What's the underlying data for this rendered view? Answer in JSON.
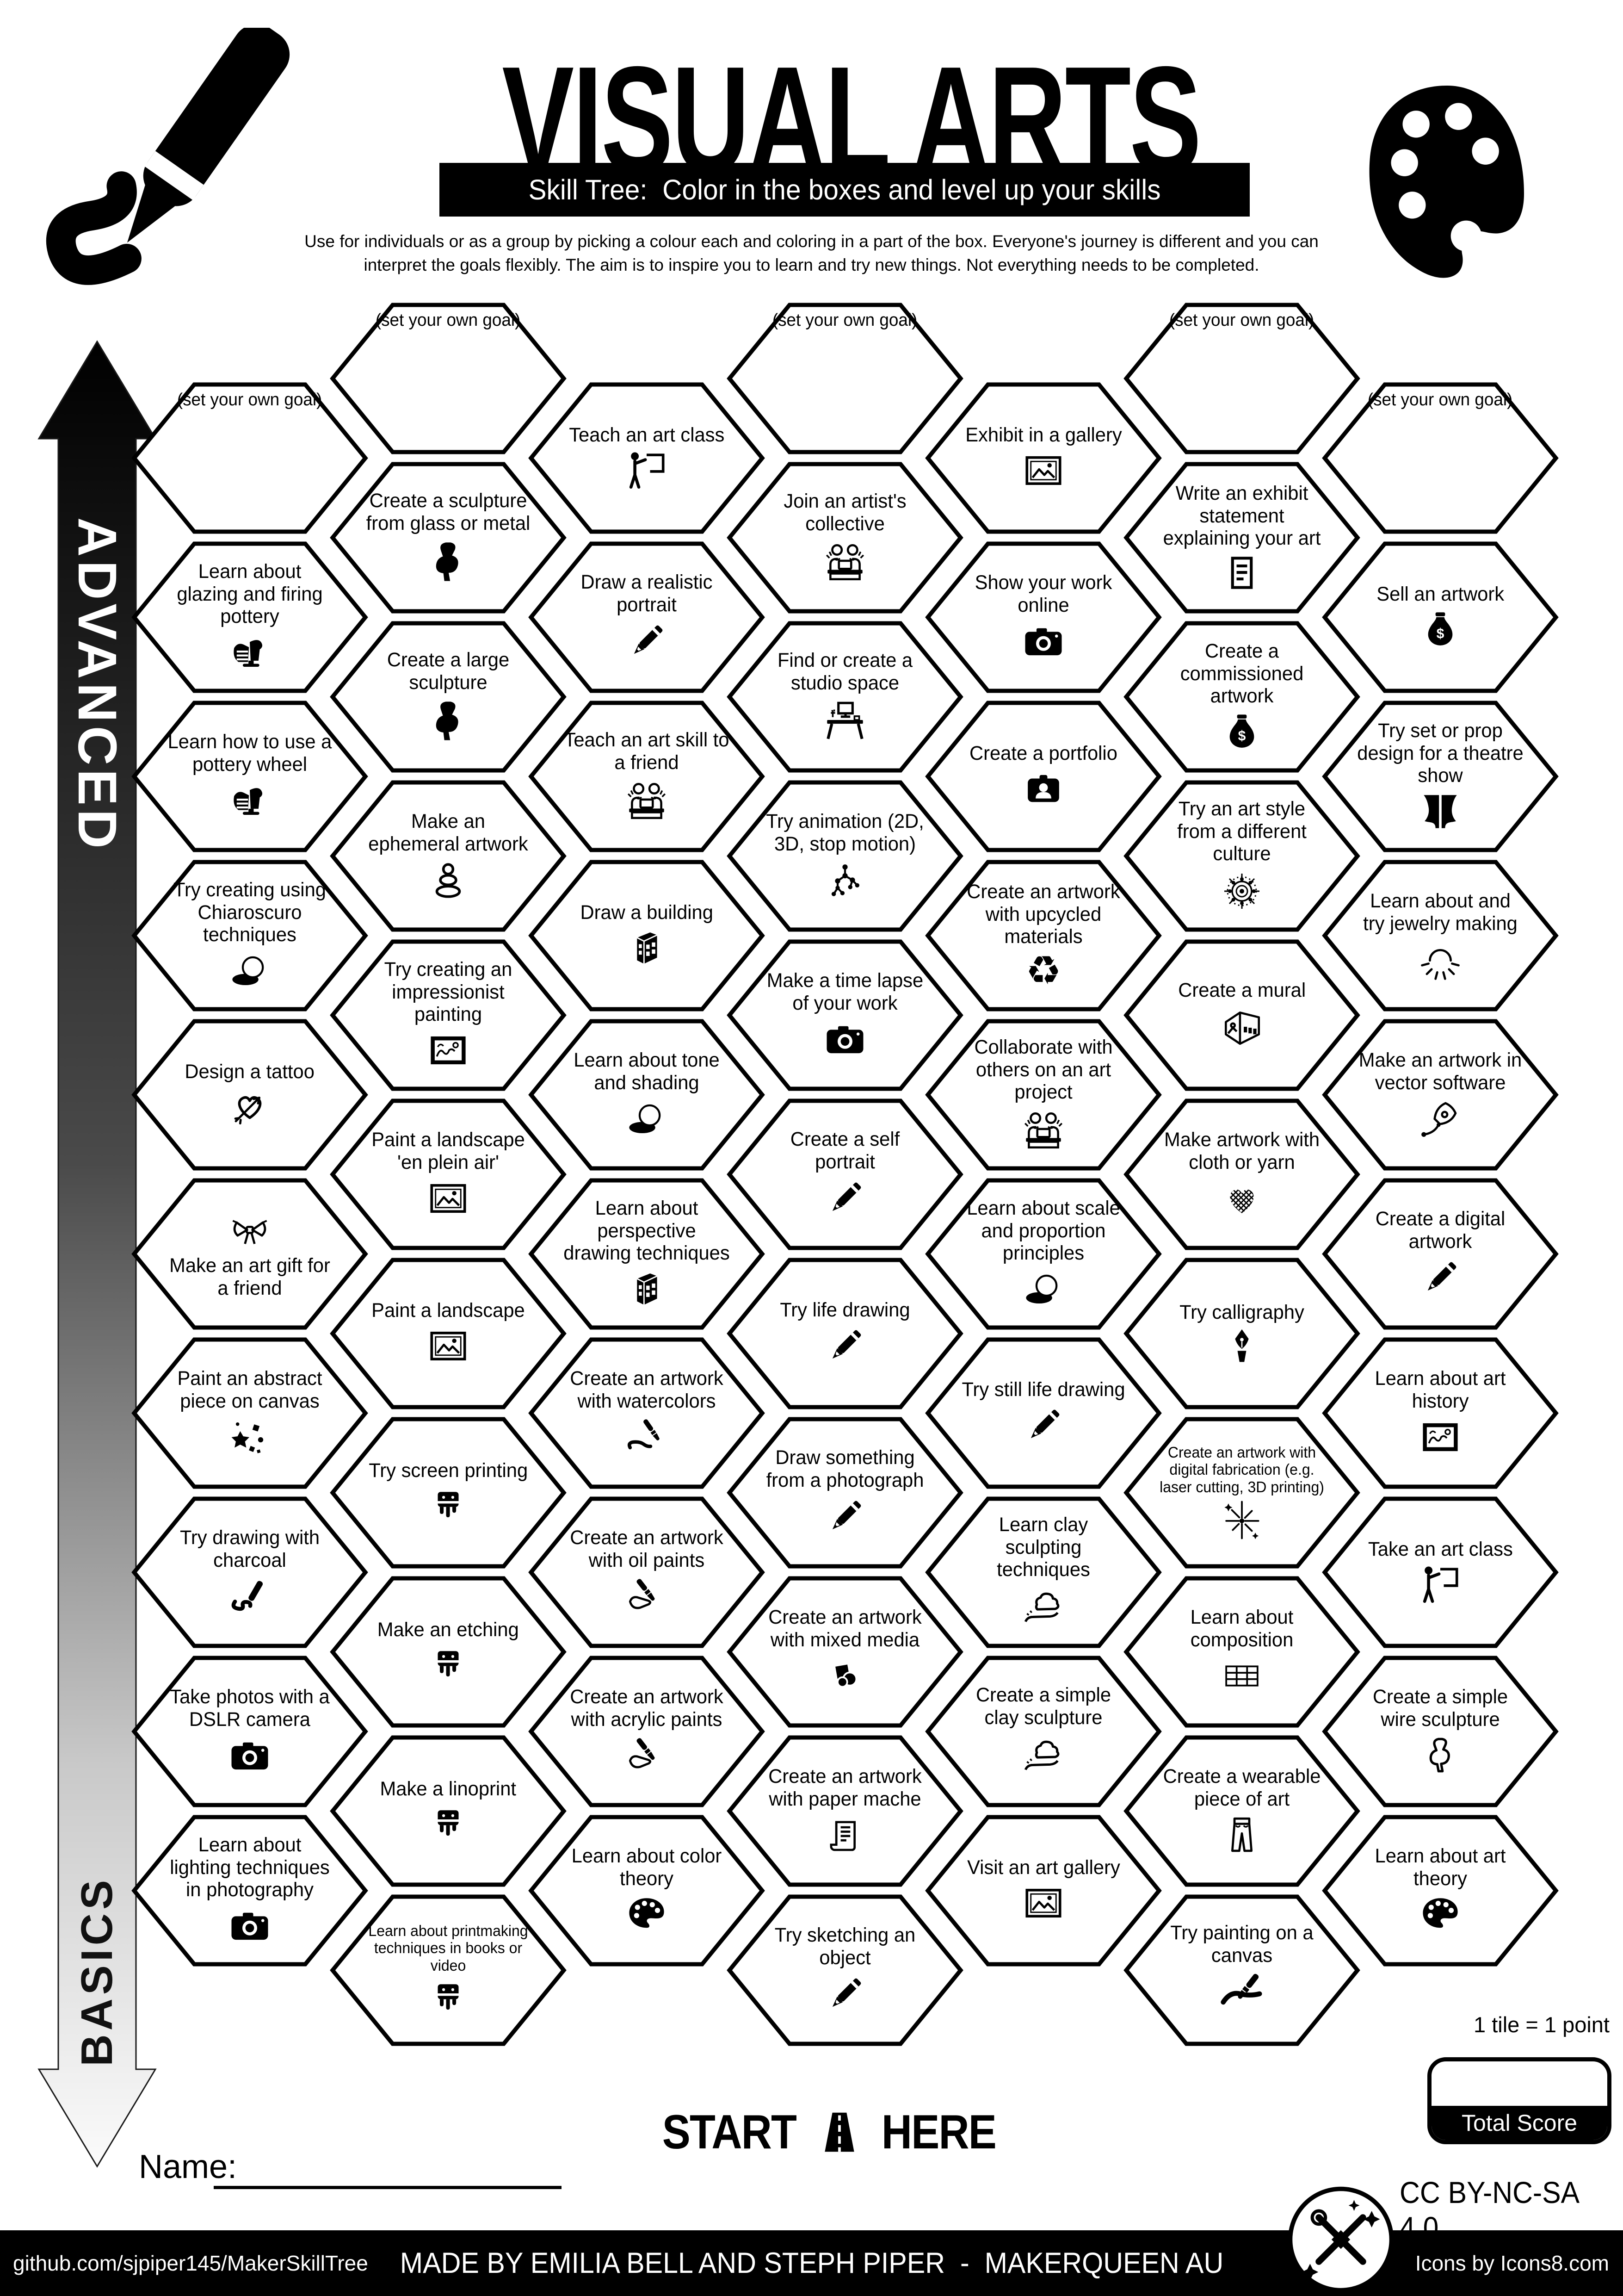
{
  "header": {
    "title": "VISUAL ARTS",
    "subtitle": "Skill Tree:  Color in the boxes and level up your skills",
    "description_line1": "Use for individuals or as a group by picking a colour each and coloring in a part of the box.  Everyone's journey is different and you can",
    "description_line2": "interpret the goals flexibly.  The aim is to inspire you to learn and try new things. Not everything needs to be completed."
  },
  "axis": {
    "top": "ADVANCED",
    "bottom": "BASICS"
  },
  "hexes": [
    {
      "col": 0,
      "row": 0,
      "label": "(set your own goal)",
      "icon": null,
      "goal": true
    },
    {
      "col": 0,
      "row": 1,
      "label": "Learn about glazing and firing pottery",
      "icon": "pottery"
    },
    {
      "col": 0,
      "row": 2,
      "label": "Learn how to use a pottery wheel",
      "icon": "pottery"
    },
    {
      "col": 0,
      "row": 3,
      "label": "Try creating using Chiaroscuro techniques",
      "icon": "sphere"
    },
    {
      "col": 0,
      "row": 4,
      "label": "Design a tattoo",
      "icon": "tattoo"
    },
    {
      "col": 0,
      "row": 5,
      "label": "Make an art gift for a friend",
      "icon": "bow",
      "icon_pos": "top"
    },
    {
      "col": 0,
      "row": 6,
      "label": "Paint an abstract piece on canvas",
      "icon": "abstract"
    },
    {
      "col": 0,
      "row": 7,
      "label": "Try drawing with charcoal",
      "icon": "squiggle"
    },
    {
      "col": 0,
      "row": 8,
      "label": "Take photos with a DSLR camera",
      "icon": "camera"
    },
    {
      "col": 0,
      "row": 9,
      "label": "Learn about lighting techniques in photography",
      "icon": "camera"
    },
    {
      "col": 1,
      "row": 0,
      "label": "(set your own goal)",
      "icon": null,
      "goal": true
    },
    {
      "col": 1,
      "row": 1,
      "label": "Create a sculpture from glass or metal",
      "icon": "venus"
    },
    {
      "col": 1,
      "row": 2,
      "label": "Create a large sculpture",
      "icon": "venus"
    },
    {
      "col": 1,
      "row": 3,
      "label": "Make an ephemeral artwork",
      "icon": "stones"
    },
    {
      "col": 1,
      "row": 4,
      "label": "Try creating an impressionist painting",
      "icon": "frame-solid"
    },
    {
      "col": 1,
      "row": 5,
      "label": "Paint a landscape 'en plein air'",
      "icon": "frame"
    },
    {
      "col": 1,
      "row": 6,
      "label": "Paint a landscape",
      "icon": "frame"
    },
    {
      "col": 1,
      "row": 7,
      "label": "Try screen printing",
      "icon": "squeegee"
    },
    {
      "col": 1,
      "row": 8,
      "label": "Make an etching",
      "icon": "squeegee"
    },
    {
      "col": 1,
      "row": 9,
      "label": "Make a linoprint",
      "icon": "squeegee"
    },
    {
      "col": 1,
      "row": 10,
      "label": "Learn about printmaking techniques in books or video",
      "icon": "squeegee",
      "small": true
    },
    {
      "col": 2,
      "row": 0,
      "label": "Teach an art class",
      "icon": "person-board"
    },
    {
      "col": 2,
      "row": 1,
      "label": "Draw a realistic portrait",
      "icon": "pencil"
    },
    {
      "col": 2,
      "row": 2,
      "label": "Teach an art skill to a friend",
      "icon": "people"
    },
    {
      "col": 2,
      "row": 3,
      "label": "Draw a building",
      "icon": "building"
    },
    {
      "col": 2,
      "row": 4,
      "label": "Learn about tone and shading",
      "icon": "sphere"
    },
    {
      "col": 2,
      "row": 5,
      "label": "Learn about perspective drawing techniques",
      "icon": "building"
    },
    {
      "col": 2,
      "row": 6,
      "label": "Create an artwork with watercolors",
      "icon": "brush-squiggle"
    },
    {
      "col": 2,
      "row": 7,
      "label": "Create an artwork with oil paints",
      "icon": "brush-hand"
    },
    {
      "col": 2,
      "row": 8,
      "label": "Create an artwork with acrylic paints",
      "icon": "brush-hand"
    },
    {
      "col": 2,
      "row": 9,
      "label": "Learn about color theory",
      "icon": "palette"
    },
    {
      "col": 3,
      "row": 0,
      "label": "(set your own goal)",
      "icon": null,
      "goal": true
    },
    {
      "col": 3,
      "row": 1,
      "label": "Join an artist's collective",
      "icon": "people"
    },
    {
      "col": 3,
      "row": 2,
      "label": "Find or create a studio space",
      "icon": "desk"
    },
    {
      "col": 3,
      "row": 3,
      "label": "Try animation (2D, 3D, stop motion)",
      "icon": "motion"
    },
    {
      "col": 3,
      "row": 4,
      "label": "Make a time lapse of your work",
      "icon": "camera"
    },
    {
      "col": 3,
      "row": 5,
      "label": "Create a self portrait",
      "icon": "pencil"
    },
    {
      "col": 3,
      "row": 6,
      "label": "Try life drawing",
      "icon": "pencil"
    },
    {
      "col": 3,
      "row": 7,
      "label": "Draw something from a photograph",
      "icon": "pencil"
    },
    {
      "col": 3,
      "row": 8,
      "label": "Create an artwork with mixed media",
      "icon": "mixed"
    },
    {
      "col": 3,
      "row": 9,
      "label": "Create an artwork with paper mache",
      "icon": "newspaper"
    },
    {
      "col": 3,
      "row": 10,
      "label": "Try sketching an object",
      "icon": "pencil"
    },
    {
      "col": 4,
      "row": 0,
      "label": "Exhibit in a gallery",
      "icon": "frame"
    },
    {
      "col": 4,
      "row": 1,
      "label": "Show your work online",
      "icon": "camera"
    },
    {
      "col": 4,
      "row": 2,
      "label": "Create a portfolio",
      "icon": "portfolio"
    },
    {
      "col": 4,
      "row": 3,
      "label": "Create an artwork with upcycled materials",
      "icon": "recycle"
    },
    {
      "col": 4,
      "row": 4,
      "label": "Collaborate with others on an art project",
      "icon": "people"
    },
    {
      "col": 4,
      "row": 5,
      "label": "Learn about scale and proportion principles",
      "icon": "sphere"
    },
    {
      "col": 4,
      "row": 6,
      "label": "Try still life drawing",
      "icon": "pencil"
    },
    {
      "col": 4,
      "row": 7,
      "label": "Learn clay sculpting techniques",
      "icon": "clay"
    },
    {
      "col": 4,
      "row": 8,
      "label": "Create a simple clay sculpture",
      "icon": "clay"
    },
    {
      "col": 4,
      "row": 9,
      "label": "Visit an art gallery",
      "icon": "frame"
    },
    {
      "col": 5,
      "row": 0,
      "label": "(set your own goal)",
      "icon": null,
      "goal": true
    },
    {
      "col": 5,
      "row": 1,
      "label": "Write an exhibit statement explaining your art",
      "icon": "document"
    },
    {
      "col": 5,
      "row": 2,
      "label": "Create a commissioned artwork",
      "icon": "money"
    },
    {
      "col": 5,
      "row": 3,
      "label": "Try an art style from a different culture",
      "icon": "mandala"
    },
    {
      "col": 5,
      "row": 4,
      "label": "Create a mural",
      "icon": "mural"
    },
    {
      "col": 5,
      "row": 5,
      "label": "Make artwork with cloth or yarn",
      "icon": "stitch"
    },
    {
      "col": 5,
      "row": 6,
      "label": "Try calligraphy",
      "icon": "nib"
    },
    {
      "col": 5,
      "row": 7,
      "label": "Create an artwork with digital fabrication (e.g. laser cutting, 3D printing)",
      "icon": "laser",
      "small": true
    },
    {
      "col": 5,
      "row": 8,
      "label": "Learn about composition",
      "icon": "grid"
    },
    {
      "col": 5,
      "row": 9,
      "label": "Create a wearable piece of art",
      "icon": "pants"
    },
    {
      "col": 5,
      "row": 10,
      "label": "Try painting on a canvas",
      "icon": "canvas-brush"
    },
    {
      "col": 6,
      "row": 0,
      "label": "(set your own goal)",
      "icon": null,
      "goal": true
    },
    {
      "col": 6,
      "row": 1,
      "label": "Sell an artwork",
      "icon": "money"
    },
    {
      "col": 6,
      "row": 2,
      "label": "Try set or prop design for a theatre show",
      "icon": "theatre"
    },
    {
      "col": 6,
      "row": 3,
      "label": "Learn about and try jewelry making",
      "icon": "jewelry"
    },
    {
      "col": 6,
      "row": 4,
      "label": "Make an artwork in vector software",
      "icon": "vector"
    },
    {
      "col": 6,
      "row": 5,
      "label": "Create a digital artwork",
      "icon": "pencil"
    },
    {
      "col": 6,
      "row": 6,
      "label": "Learn about art history",
      "icon": "frame-solid"
    },
    {
      "col": 6,
      "row": 7,
      "label": "Take an art class",
      "icon": "person-board"
    },
    {
      "col": 6,
      "row": 8,
      "label": "Create a simple wire sculpture",
      "icon": "wire"
    },
    {
      "col": 6,
      "row": 9,
      "label": "Learn about art theory",
      "icon": "palette"
    }
  ],
  "start_here": {
    "start": "START",
    "here": "HERE"
  },
  "score": {
    "note": "1 tile = 1 point",
    "total_label": "Total Score"
  },
  "name_label": "Name:",
  "license": "CC BY-NC-SA 4.0",
  "footer": {
    "left": "github.com/sjpiper145/MakerSkillTree",
    "center": "MADE BY EMILIA BELL AND STEPH PIPER  -  MAKERQUEEN AU",
    "right": "Icons by Icons8.com"
  }
}
